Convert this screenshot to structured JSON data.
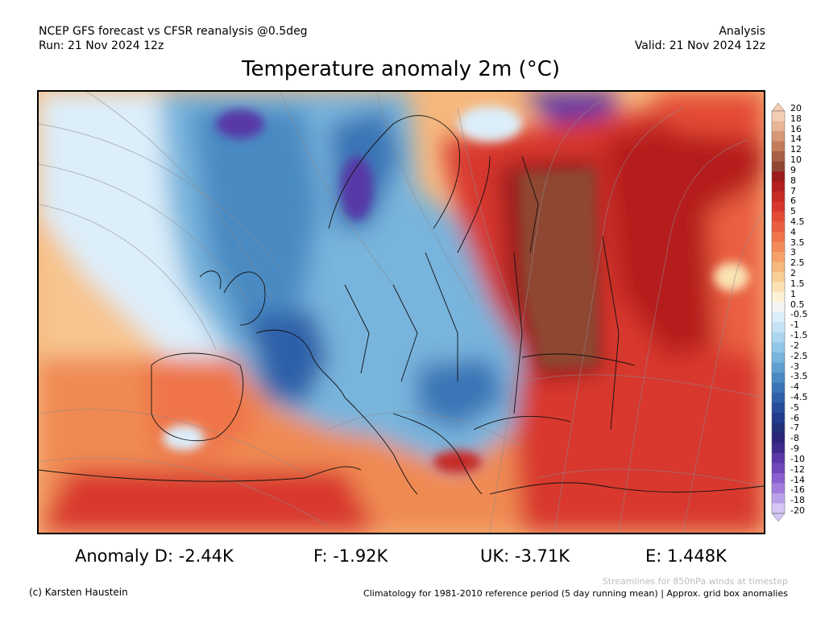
{
  "header": {
    "left_line1": "NCEP GFS forecast vs CFSR reanalysis @0.5deg",
    "left_line2": "Run: 21 Nov 2024 12z",
    "right_line1": "Analysis",
    "right_line2": "Valid: 21 Nov 2024 12z"
  },
  "title": "Temperature anomaly 2m (°C)",
  "colorbar": {
    "labels": [
      "20",
      "18",
      "16",
      "14",
      "12",
      "10",
      "9",
      "8",
      "7",
      "6",
      "5",
      "4.5",
      "4",
      "3.5",
      "3",
      "2.5",
      "2",
      "1.5",
      "1",
      "0.5",
      "-0.5",
      "-1",
      "-1.5",
      "-2",
      "-2.5",
      "-3",
      "-3.5",
      "-4",
      "-4.5",
      "-5",
      "-6",
      "-7",
      "-8",
      "-9",
      "-10",
      "-12",
      "-14",
      "-16",
      "-18",
      "-20"
    ],
    "colors": [
      "#f4cdb5",
      "#e8b597",
      "#d79877",
      "#c27c5c",
      "#a85f43",
      "#8f4733",
      "#9c1b1b",
      "#b51e1e",
      "#c62b25",
      "#d8372d",
      "#e44b35",
      "#ea5f3f",
      "#ef744a",
      "#f28a58",
      "#f5a168",
      "#f6b87d",
      "#f8cf96",
      "#fae2b2",
      "#fdf2d6",
      "#f5f5f5",
      "#dceefa",
      "#c5e3f5",
      "#acd6ef",
      "#92c6e6",
      "#78b4dc",
      "#5e9fd0",
      "#4a8ac3",
      "#3a74b6",
      "#2f60a9",
      "#284c9c",
      "#233b8d",
      "#22307a",
      "#2b2478",
      "#3d2a8c",
      "#5838a6",
      "#7046bb",
      "#8a5fcf",
      "#a37ddd",
      "#bba0ea",
      "#d5c6f5"
    ]
  },
  "stats": {
    "germany": "Anomaly D: -2.44K",
    "france": "F: -1.92K",
    "uk": "UK: -3.71K",
    "spain": "E: 1.448K"
  },
  "footer": {
    "credit": "(c) Karsten Haustein",
    "streamlines_note": "Streamlines for 850hPa winds at timestep",
    "climatology_note": "Climatology for 1981-2010 reference period (5 day running mean) | Approx. grid box anomalies"
  }
}
